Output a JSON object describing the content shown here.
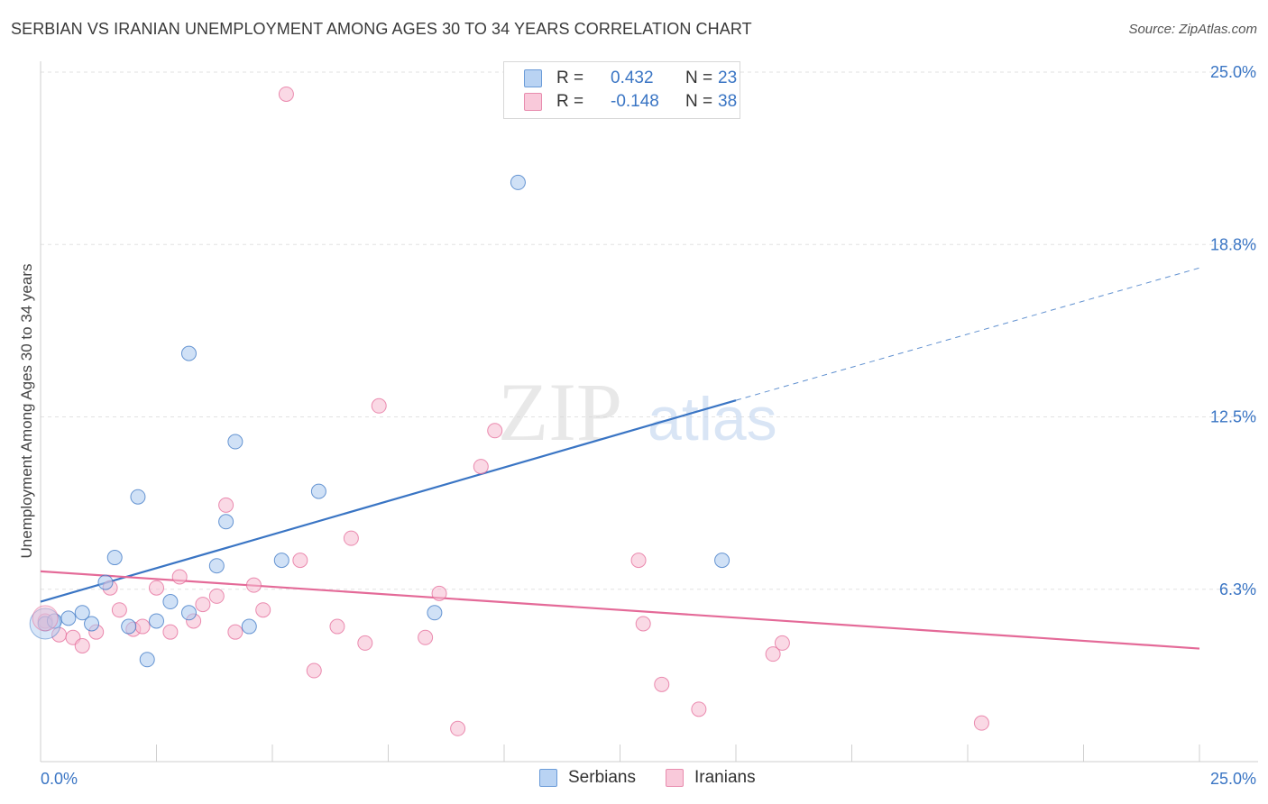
{
  "title": "SERBIAN VS IRANIAN UNEMPLOYMENT AMONG AGES 30 TO 34 YEARS CORRELATION CHART",
  "source": "Source: ZipAtlas.com",
  "watermark": {
    "zip": "ZIP",
    "atlas": "atlas"
  },
  "colors": {
    "serbians": "#3a75c4",
    "serbians_fill": "#a9c8ef",
    "iranians": "#e46a98",
    "iranians_fill": "#f6b9cf",
    "accent_text": "#3a75c4"
  },
  "legend": {
    "rows": [
      {
        "r_label": "R =",
        "r_value": "0.432",
        "n_label": "N =",
        "n_value": "23"
      },
      {
        "r_label": "R =",
        "r_value": "-0.148",
        "n_label": "N =",
        "n_value": "38"
      }
    ]
  },
  "bottom_legend": {
    "serbians": "Serbians",
    "iranians": "Iranians"
  },
  "chart_data": {
    "type": "scatter",
    "title": "SERBIAN VS IRANIAN UNEMPLOYMENT AMONG AGES 30 TO 34 YEARS CORRELATION CHART",
    "xlabel": "",
    "ylabel": "Unemployment Among Ages 30 to 34 years",
    "xlim": [
      0,
      25
    ],
    "ylim": [
      0,
      25
    ],
    "x_tick_labels": [
      "0.0%",
      "25.0%"
    ],
    "y_tick_labels": [
      "6.3%",
      "12.5%",
      "18.8%",
      "25.0%"
    ],
    "y_tick_values": [
      6.25,
      12.5,
      18.75,
      25.0
    ],
    "grid": true,
    "series": [
      {
        "name": "Serbians",
        "points": [
          [
            0.1,
            5.0
          ],
          [
            0.3,
            5.1
          ],
          [
            0.6,
            5.2
          ],
          [
            0.9,
            5.4
          ],
          [
            1.1,
            5.0
          ],
          [
            1.4,
            6.5
          ],
          [
            1.6,
            7.4
          ],
          [
            1.9,
            4.9
          ],
          [
            2.1,
            9.6
          ],
          [
            2.3,
            3.7
          ],
          [
            2.5,
            5.1
          ],
          [
            2.8,
            5.8
          ],
          [
            3.2,
            5.4
          ],
          [
            3.2,
            14.8
          ],
          [
            3.8,
            7.1
          ],
          [
            4.0,
            8.7
          ],
          [
            4.2,
            11.6
          ],
          [
            4.5,
            4.9
          ],
          [
            5.2,
            7.3
          ],
          [
            6.0,
            9.8
          ],
          [
            8.5,
            5.4
          ],
          [
            10.3,
            21.0
          ],
          [
            14.7,
            7.3
          ]
        ],
        "trend": {
          "x_start": 0,
          "y_start": 5.8,
          "x_solid_end": 15.0,
          "y_solid_end": 13.1,
          "x_end": 25,
          "y_end": 17.9
        }
      },
      {
        "name": "Iranians",
        "points": [
          [
            0.1,
            5.1
          ],
          [
            0.4,
            4.6
          ],
          [
            0.7,
            4.5
          ],
          [
            0.9,
            4.2
          ],
          [
            1.2,
            4.7
          ],
          [
            1.5,
            6.3
          ],
          [
            1.7,
            5.5
          ],
          [
            2.0,
            4.8
          ],
          [
            2.2,
            4.9
          ],
          [
            2.5,
            6.3
          ],
          [
            2.8,
            4.7
          ],
          [
            3.0,
            6.7
          ],
          [
            3.3,
            5.1
          ],
          [
            3.5,
            5.7
          ],
          [
            3.8,
            6.0
          ],
          [
            4.0,
            9.3
          ],
          [
            4.2,
            4.7
          ],
          [
            4.6,
            6.4
          ],
          [
            4.8,
            5.5
          ],
          [
            5.6,
            7.3
          ],
          [
            5.9,
            3.3
          ],
          [
            6.4,
            4.9
          ],
          [
            6.7,
            8.1
          ],
          [
            7.0,
            4.3
          ],
          [
            7.3,
            12.9
          ],
          [
            8.3,
            4.5
          ],
          [
            8.6,
            6.1
          ],
          [
            9.0,
            1.2
          ],
          [
            9.5,
            10.7
          ],
          [
            9.8,
            12.0
          ],
          [
            12.9,
            7.3
          ],
          [
            13.0,
            5.0
          ],
          [
            13.4,
            2.8
          ],
          [
            14.2,
            1.9
          ],
          [
            15.8,
            3.9
          ],
          [
            16.0,
            4.3
          ],
          [
            20.3,
            1.4
          ],
          [
            5.3,
            24.2
          ]
        ],
        "trend": {
          "x_start": 0,
          "y_start": 6.9,
          "x_end": 25,
          "y_end": 4.1
        }
      }
    ]
  }
}
